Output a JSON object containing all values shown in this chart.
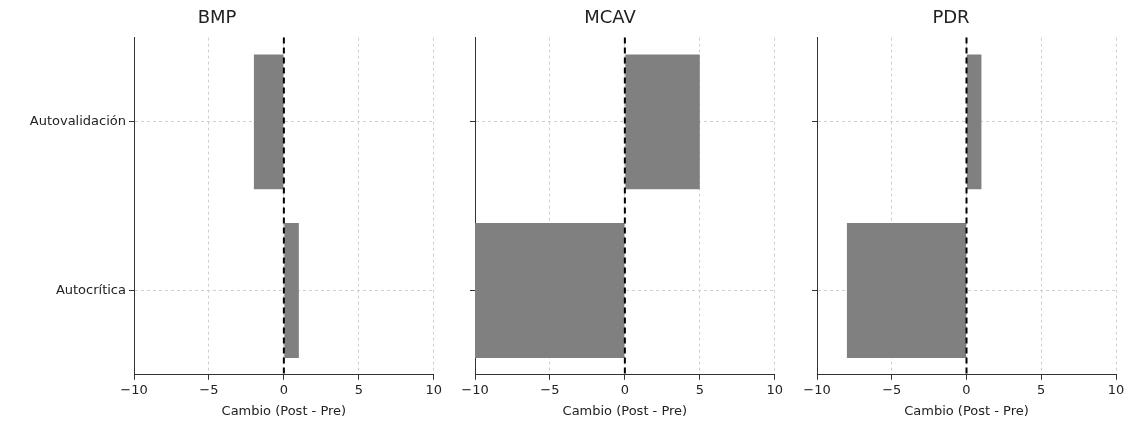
{
  "chart_data": [
    {
      "type": "bar",
      "orientation": "horizontal",
      "title": "BMP",
      "xlabel": "Cambio (Post - Pre)",
      "categories": [
        "Autovalidación",
        "Autocrítica"
      ],
      "values": [
        -2,
        1
      ],
      "color": "#808080",
      "xlim": [
        -10,
        10
      ],
      "xticks": [
        -10,
        -5,
        0,
        5,
        10
      ],
      "grid": true,
      "ref_lines": [
        {
          "axis": "x",
          "value": 0,
          "color": "#000000",
          "line_style": "dashed"
        }
      ]
    },
    {
      "type": "bar",
      "orientation": "horizontal",
      "title": "MCAV",
      "xlabel": "Cambio (Post - Pre)",
      "categories": [
        null,
        null
      ],
      "values": [
        5,
        -10
      ],
      "color": "#808080",
      "xlim": [
        -10,
        10
      ],
      "xticks": [
        -10,
        -5,
        0,
        5,
        10
      ],
      "grid": true,
      "tick_labels": "x",
      "ref_lines": [
        {
          "axis": "x",
          "value": 0,
          "color": "#000000",
          "line_style": "dashed"
        }
      ]
    },
    {
      "type": "bar",
      "orientation": "horizontal",
      "title": "PDR",
      "xlabel": "Cambio (Post - Pre)",
      "categories": [
        null,
        null
      ],
      "values": [
        1,
        -8
      ],
      "color": "#808080",
      "xlim": [
        -10,
        10
      ],
      "xticks": [
        -10,
        -5,
        0,
        5,
        10
      ],
      "grid": true,
      "tick_labels": "x",
      "ref_lines": [
        {
          "axis": "x",
          "value": 0,
          "color": "#000000",
          "line_style": "dashed"
        }
      ]
    }
  ]
}
